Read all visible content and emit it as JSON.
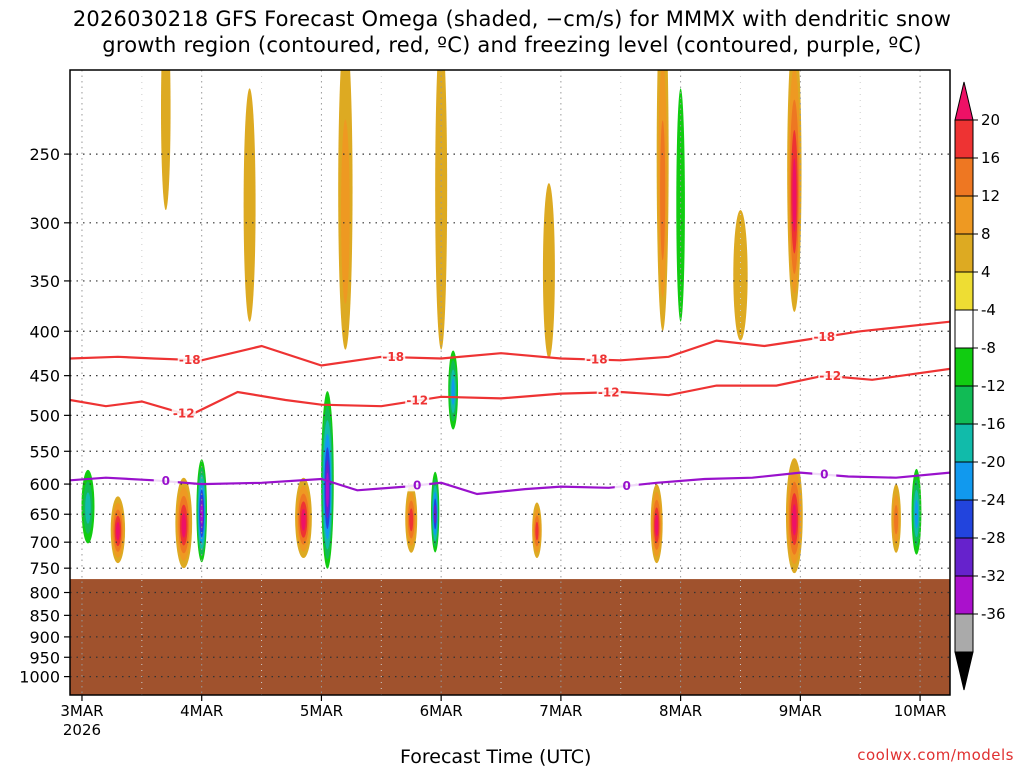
{
  "chart_data": {
    "type": "heatmap",
    "title_line1": "2026030218 GFS Forecast Omega (shaded, −cm/s) for MMMX with dendritic snow",
    "title_line2": "growth region (contoured, red, ºC) and freezing level (contoured, purple, ºC)",
    "xlabel": "Forecast Time (UTC)",
    "x_ticks": [
      {
        "label": "3MAR",
        "day": 3
      },
      {
        "label": "4MAR",
        "day": 4
      },
      {
        "label": "5MAR",
        "day": 5
      },
      {
        "label": "6MAR",
        "day": 6
      },
      {
        "label": "7MAR",
        "day": 7
      },
      {
        "label": "8MAR",
        "day": 8
      },
      {
        "label": "9MAR",
        "day": 9
      },
      {
        "label": "10MAR",
        "day": 10
      }
    ],
    "x_year_label": "2026",
    "x_range_days": [
      2.9,
      10.25
    ],
    "y_ticks": [
      250,
      300,
      350,
      400,
      450,
      500,
      550,
      600,
      650,
      700,
      750,
      800,
      850,
      900,
      950,
      1000
    ],
    "y_range_hpa": [
      200,
      1050
    ],
    "surface_pressure_hpa": 772,
    "colorbar": {
      "labels": [
        "20",
        "16",
        "12",
        "8",
        "4",
        "-4",
        "-8",
        "-12",
        "-16",
        "-20",
        "-24",
        "-28",
        "-32",
        "-36"
      ],
      "colors": [
        "#ee1166",
        "#ee3333",
        "#ee7722",
        "#ee9922",
        "#ddaa22",
        "#eedd33",
        "#ffffff",
        "#11cc11",
        "#11bb55",
        "#11bbaa",
        "#1199ee",
        "#2244dd",
        "#6622cc",
        "#aa11cc",
        "#aaaaaa",
        "#000000"
      ]
    },
    "contours": [
      {
        "label": "-18",
        "color": "#ee3333",
        "points": [
          [
            2.9,
            430
          ],
          [
            3.3,
            428
          ],
          [
            3.6,
            430
          ],
          [
            4.0,
            432
          ],
          [
            4.5,
            416
          ],
          [
            5.0,
            438
          ],
          [
            5.5,
            428
          ],
          [
            6.0,
            430
          ],
          [
            6.5,
            424
          ],
          [
            7.0,
            430
          ],
          [
            7.5,
            432
          ],
          [
            7.9,
            428
          ],
          [
            8.3,
            410
          ],
          [
            8.7,
            416
          ],
          [
            9.0,
            410
          ],
          [
            9.5,
            400
          ],
          [
            10.25,
            390
          ]
        ],
        "label_days": [
          3.9,
          5.6,
          7.3,
          9.2
        ]
      },
      {
        "label": "-12",
        "color": "#ee3333",
        "points": [
          [
            2.9,
            480
          ],
          [
            3.2,
            488
          ],
          [
            3.5,
            482
          ],
          [
            3.9,
            500
          ],
          [
            4.3,
            470
          ],
          [
            4.7,
            480
          ],
          [
            5.0,
            486
          ],
          [
            5.5,
            488
          ],
          [
            6.0,
            476
          ],
          [
            6.5,
            478
          ],
          [
            7.0,
            472
          ],
          [
            7.5,
            470
          ],
          [
            7.9,
            474
          ],
          [
            8.3,
            462
          ],
          [
            8.8,
            462
          ],
          [
            9.2,
            450
          ],
          [
            9.6,
            455
          ],
          [
            10.25,
            442
          ]
        ],
        "label_days": [
          3.85,
          5.8,
          7.4,
          9.25
        ]
      },
      {
        "label": "0",
        "color": "#9911cc",
        "points": [
          [
            2.9,
            594
          ],
          [
            3.2,
            590
          ],
          [
            3.6,
            594
          ],
          [
            4.0,
            600
          ],
          [
            4.5,
            598
          ],
          [
            5.0,
            592
          ],
          [
            5.3,
            610
          ],
          [
            5.7,
            604
          ],
          [
            6.0,
            598
          ],
          [
            6.3,
            616
          ],
          [
            6.7,
            608
          ],
          [
            7.0,
            604
          ],
          [
            7.4,
            606
          ],
          [
            7.8,
            598
          ],
          [
            8.2,
            592
          ],
          [
            8.6,
            590
          ],
          [
            9.0,
            582
          ],
          [
            9.4,
            588
          ],
          [
            9.8,
            590
          ],
          [
            10.25,
            582
          ]
        ],
        "label_days": [
          3.7,
          5.8,
          7.55,
          9.2
        ]
      }
    ],
    "omega_blobs": [
      {
        "x": 3.05,
        "p": 640,
        "rx": 0.07,
        "ry": 80,
        "v": -18
      },
      {
        "x": 3.3,
        "p": 680,
        "rx": 0.06,
        "ry": 60,
        "v": 24
      },
      {
        "x": 4.0,
        "p": 650,
        "rx": 0.05,
        "ry": 100,
        "v": -36
      },
      {
        "x": 3.85,
        "p": 670,
        "rx": 0.07,
        "ry": 80,
        "v": 22
      },
      {
        "x": 5.05,
        "p": 610,
        "rx": 0.06,
        "ry": 160,
        "v": -36
      },
      {
        "x": 4.85,
        "p": 660,
        "rx": 0.07,
        "ry": 70,
        "v": 22
      },
      {
        "x": 5.95,
        "p": 650,
        "rx": 0.04,
        "ry": 80,
        "v": -30
      },
      {
        "x": 6.1,
        "p": 470,
        "rx": 0.05,
        "ry": 60,
        "v": -22
      },
      {
        "x": 5.75,
        "p": 660,
        "rx": 0.05,
        "ry": 60,
        "v": 20
      },
      {
        "x": 6.8,
        "p": 680,
        "rx": 0.04,
        "ry": 50,
        "v": 20
      },
      {
        "x": 7.8,
        "p": 670,
        "rx": 0.05,
        "ry": 70,
        "v": 22
      },
      {
        "x": 7.85,
        "p": 280,
        "rx": 0.05,
        "ry": 120,
        "v": 14
      },
      {
        "x": 8.0,
        "p": 300,
        "rx": 0.06,
        "ry": 150,
        "v": -12
      },
      {
        "x": 8.95,
        "p": 280,
        "rx": 0.06,
        "ry": 100,
        "v": 22
      },
      {
        "x": 8.95,
        "p": 660,
        "rx": 0.07,
        "ry": 100,
        "v": 24
      },
      {
        "x": 9.97,
        "p": 650,
        "rx": 0.05,
        "ry": 90,
        "v": -22
      },
      {
        "x": 9.8,
        "p": 660,
        "rx": 0.04,
        "ry": 60,
        "v": 14
      },
      {
        "x": 3.7,
        "p": 230,
        "rx": 0.04,
        "ry": 60,
        "v": 6
      },
      {
        "x": 4.4,
        "p": 300,
        "rx": 0.05,
        "ry": 90,
        "v": 6
      },
      {
        "x": 5.2,
        "p": 300,
        "rx": 0.06,
        "ry": 120,
        "v": 10
      },
      {
        "x": 6.0,
        "p": 300,
        "rx": 0.05,
        "ry": 120,
        "v": 8
      },
      {
        "x": 6.9,
        "p": 350,
        "rx": 0.05,
        "ry": 80,
        "v": 6
      },
      {
        "x": 8.5,
        "p": 350,
        "rx": 0.06,
        "ry": 60,
        "v": 6
      }
    ]
  },
  "credit": "coolwx.com/models"
}
